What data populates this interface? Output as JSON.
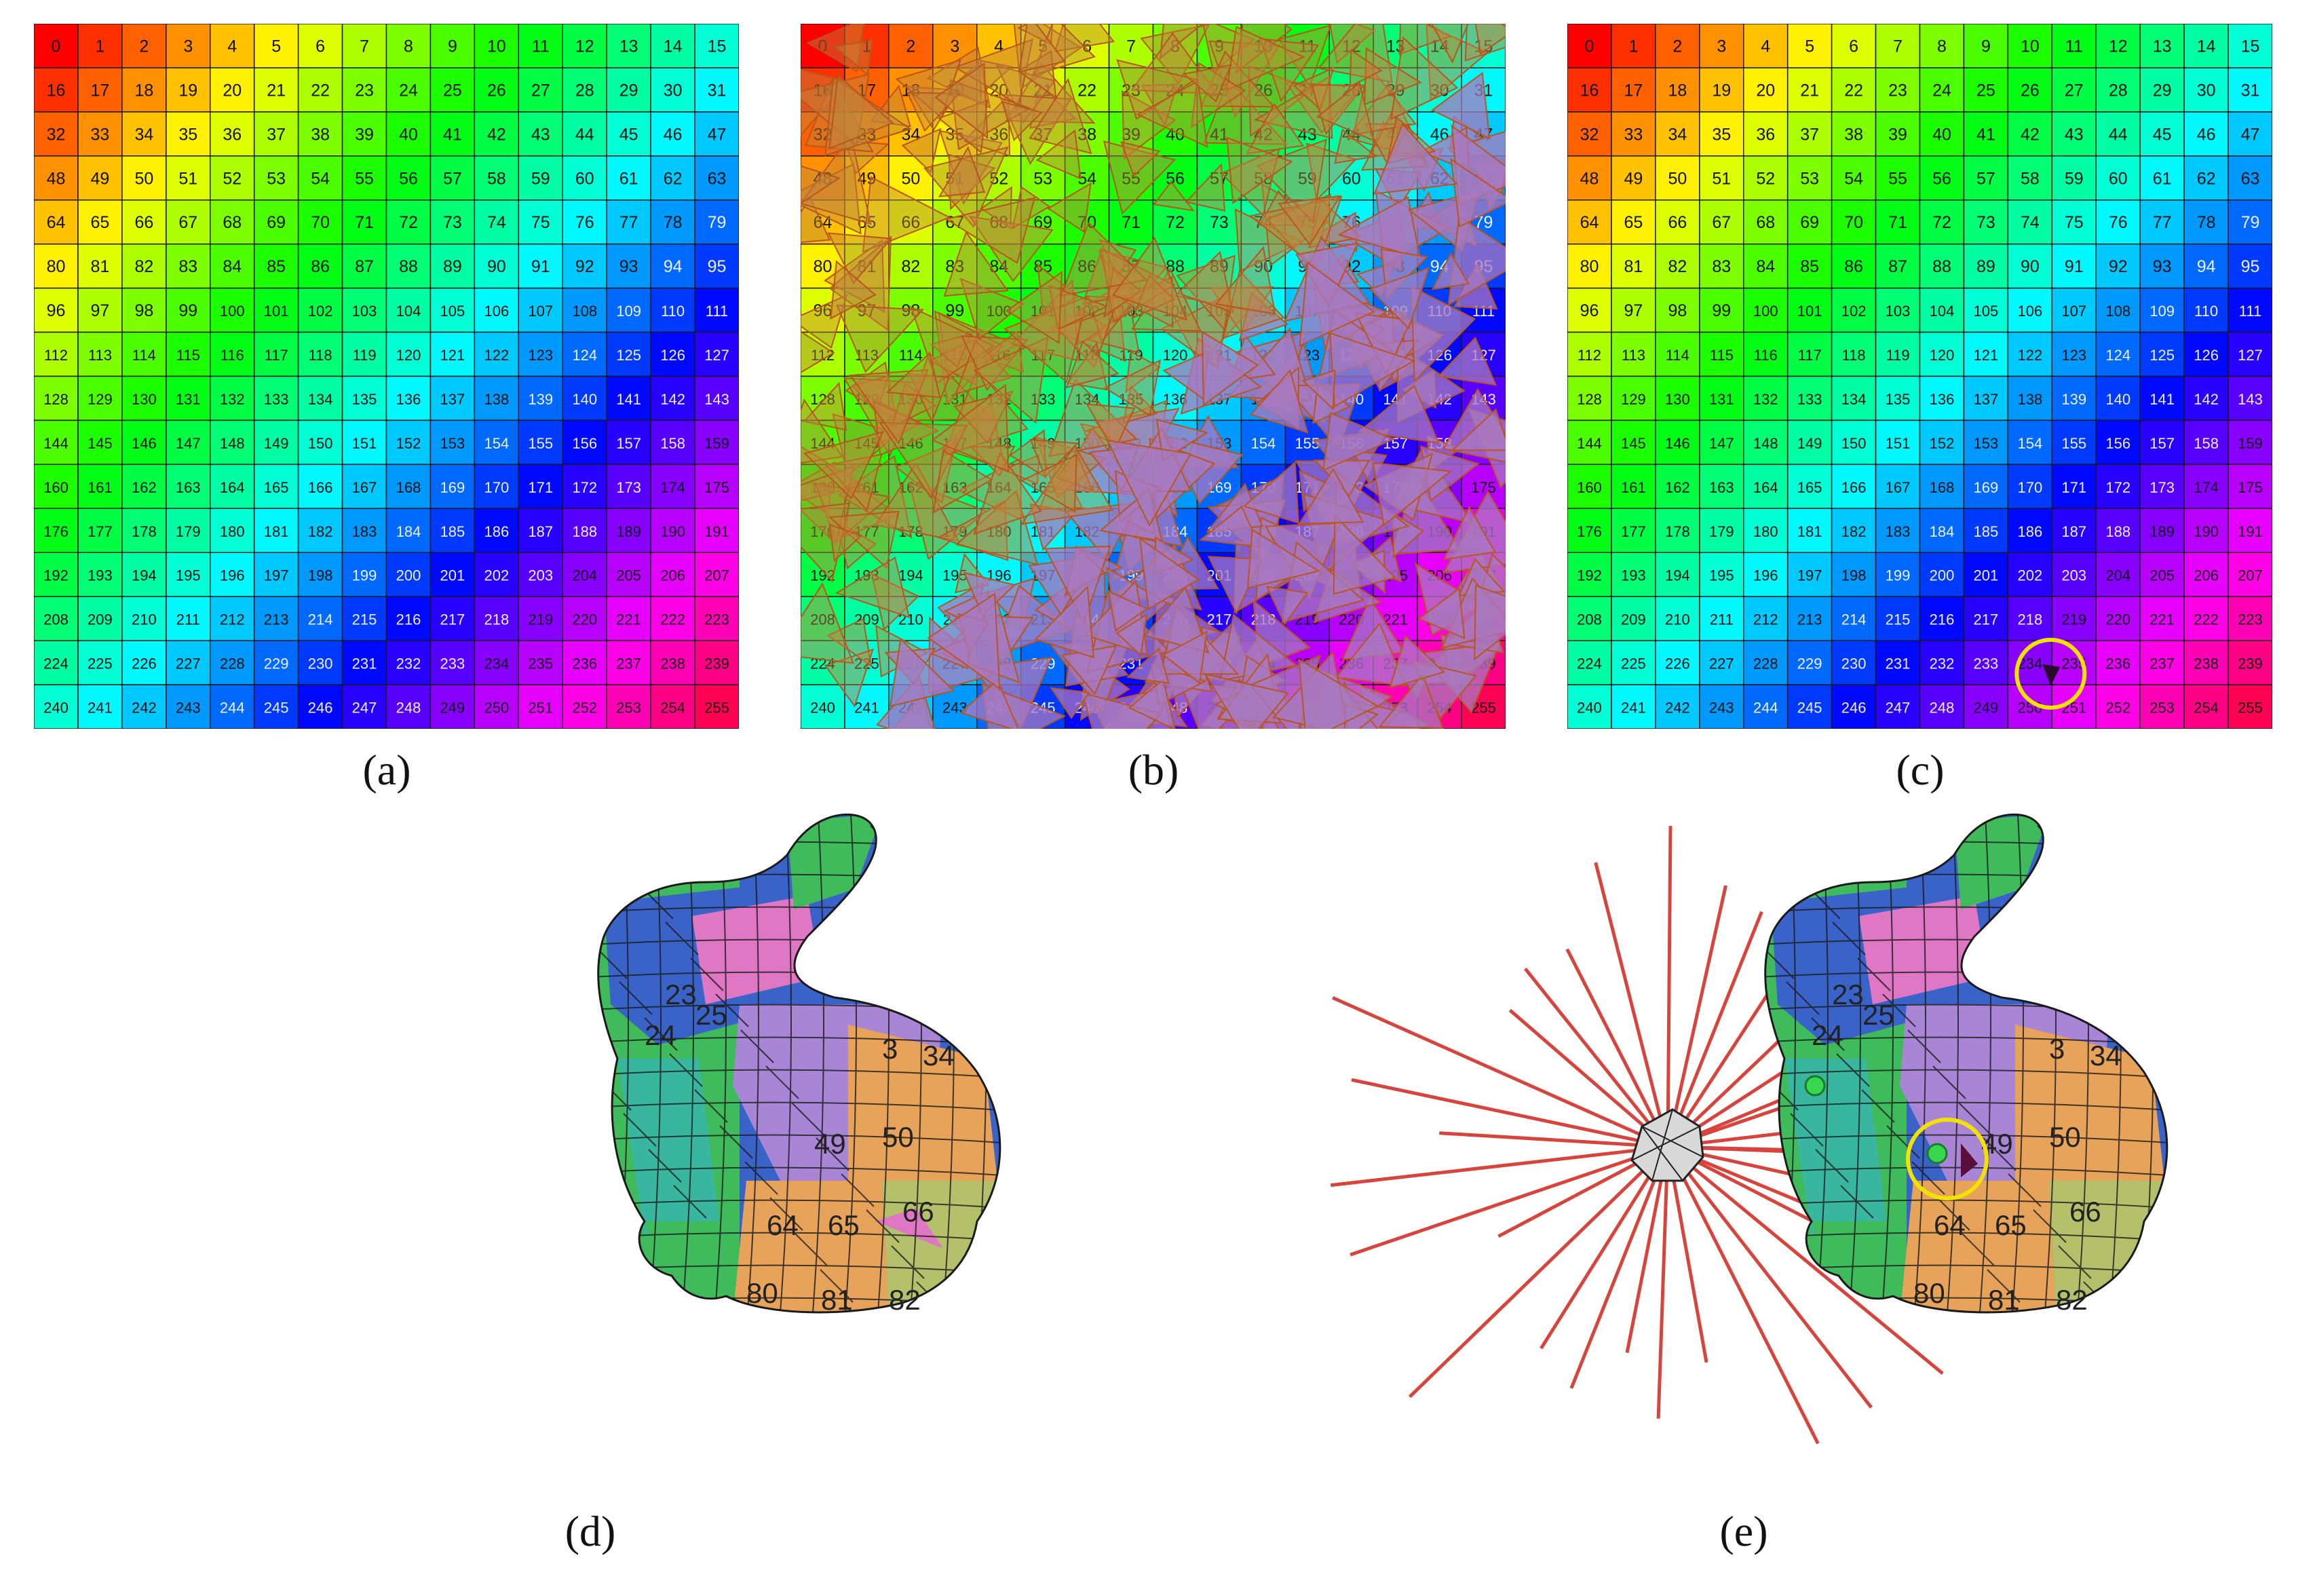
{
  "figure": {
    "captions": {
      "a": "(a)",
      "b": "(b)",
      "c": "(c)",
      "d": "(d)",
      "e": "(e)"
    },
    "grid": {
      "rows": 16,
      "cols": 16,
      "start": 0,
      "end": 255
    },
    "grid_colors": {
      "cell_stroke": "#1a1a1a",
      "mesh_stroke": "#b8561e",
      "mesh_fill": "#c0843c",
      "mesh_fill_cool": "#a87abf",
      "highlight_circle": "#f2e200",
      "marker": "#2a0a2a"
    },
    "bunny": {
      "visible_labels": [
        "23",
        "24",
        "25",
        "3",
        "34",
        "49",
        "50",
        "64",
        "65",
        "66",
        "80",
        "81",
        "82"
      ],
      "colors": {
        "orange": "#e7a35a",
        "yellow_green": "#b4c16a",
        "purple": "#a985d6",
        "magenta": "#e077c4",
        "blue": "#3a63c9",
        "green": "#3fbb5b",
        "teal": "#38b6a0",
        "red_ray": "#d8443c",
        "sphere": "#d9d9d9",
        "highlight_circle": "#f2e200",
        "green_dot": "#39d64f"
      },
      "ray_count": 30
    }
  }
}
